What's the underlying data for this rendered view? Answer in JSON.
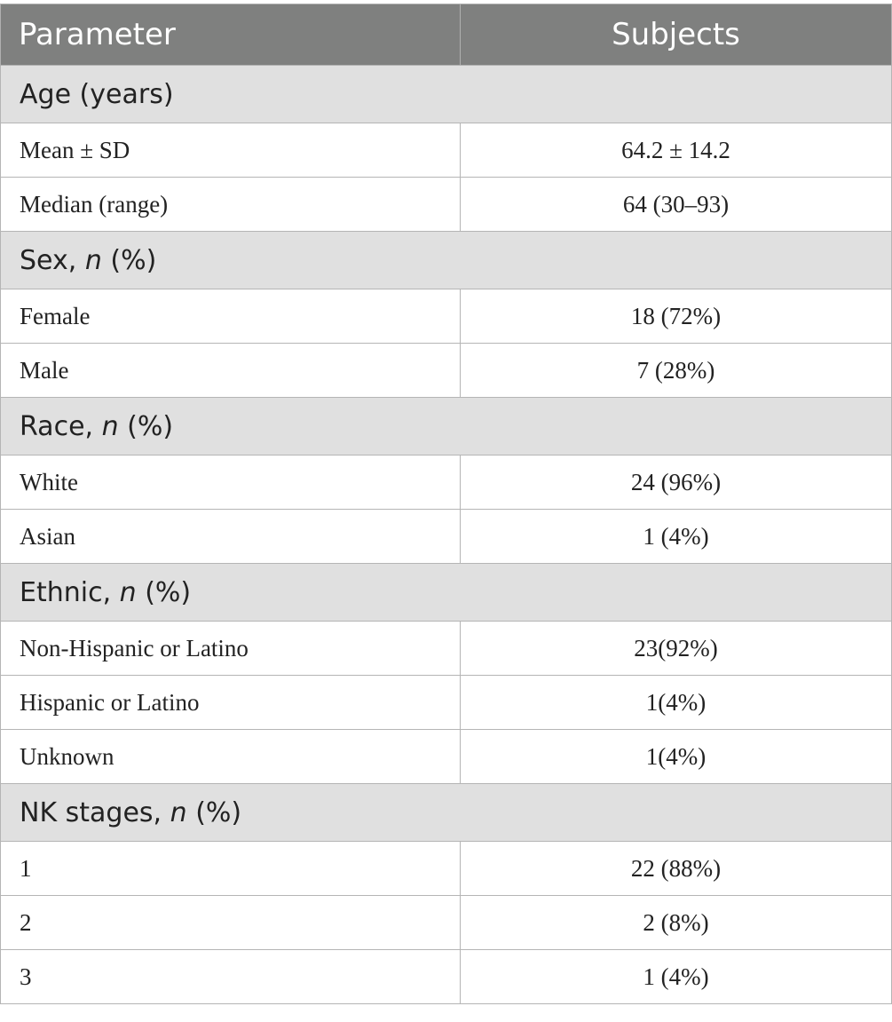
{
  "table": {
    "header": {
      "parameter": "Parameter",
      "subjects": "Subjects"
    },
    "groups": [
      {
        "title_pre": "Age (years)",
        "title_n": "",
        "title_post": "",
        "rows": [
          {
            "label": "Mean ± SD",
            "value": "64.2 ± 14.2"
          },
          {
            "label": "Median (range)",
            "value": "64 (30–93)"
          }
        ]
      },
      {
        "title_pre": "Sex, ",
        "title_n": "n",
        "title_post": " (%)",
        "rows": [
          {
            "label": "Female",
            "value": "18 (72%)"
          },
          {
            "label": "Male",
            "value": "7 (28%)"
          }
        ]
      },
      {
        "title_pre": "Race, ",
        "title_n": "n",
        "title_post": " (%)",
        "rows": [
          {
            "label": "White",
            "value": "24 (96%)"
          },
          {
            "label": "Asian",
            "value": "1 (4%)"
          }
        ]
      },
      {
        "title_pre": "Ethnic, ",
        "title_n": "n",
        "title_post": " (%)",
        "rows": [
          {
            "label": "Non-Hispanic or Latino",
            "value": "23(92%)"
          },
          {
            "label": "Hispanic or Latino",
            "value": "1(4%)"
          },
          {
            "label": "Unknown",
            "value": "1(4%)"
          }
        ]
      },
      {
        "title_pre": "NK stages, ",
        "title_n": "n",
        "title_post": " (%)",
        "rows": [
          {
            "label": "1",
            "value": "22 (88%)"
          },
          {
            "label": "2",
            "value": "2 (8%)"
          },
          {
            "label": "3",
            "value": "1 (4%)"
          }
        ]
      }
    ]
  },
  "colors": {
    "header_bg": "#7f807f",
    "group_bg": "#e0e0e0",
    "border": "#b5b5b5"
  }
}
